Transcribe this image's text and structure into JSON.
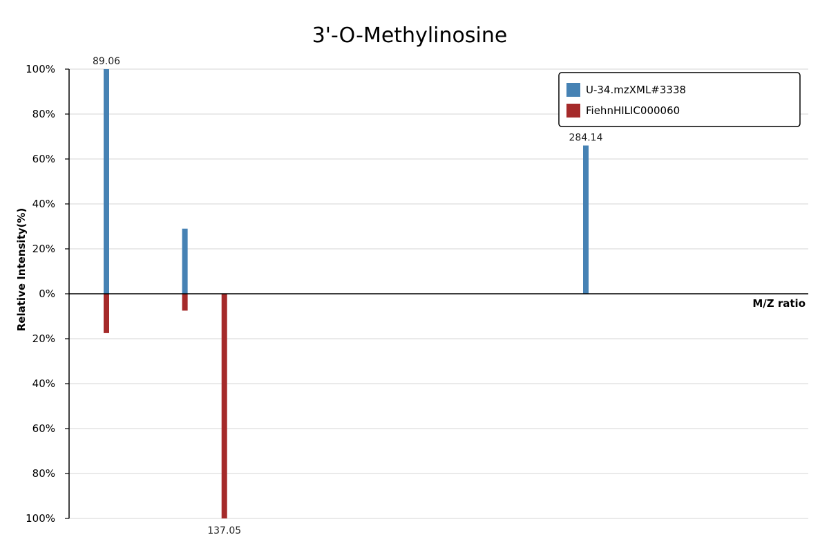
{
  "chart_data": {
    "type": "bar",
    "title": "3'-O-Methylinosine",
    "xlabel": "M/Z ratio",
    "ylabel": "Relative Intensity(%)",
    "xlim": [
      85,
      300
    ],
    "ylim_top": [
      0,
      100
    ],
    "ylim_bottom": [
      0,
      100
    ],
    "y_tick_labels": [
      "100%",
      "80%",
      "60%",
      "40%",
      "20%",
      "0%",
      "20%",
      "40%",
      "60%",
      "80%",
      "100%"
    ],
    "grid": true,
    "legend_position": "top-right",
    "series": [
      {
        "name": "U-34.mzXML#3338",
        "color": "#4682b4",
        "direction": "up",
        "peaks": [
          {
            "mz": 89.06,
            "intensity": 100,
            "label": "89.06"
          },
          {
            "mz": 121.0,
            "intensity": 29
          },
          {
            "mz": 284.14,
            "intensity": 66,
            "label": "284.14"
          }
        ]
      },
      {
        "name": "FiehnHILIC000060",
        "color": "#a52a2a",
        "direction": "down",
        "peaks": [
          {
            "mz": 89.06,
            "intensity": 17.5
          },
          {
            "mz": 121.0,
            "intensity": 7.5
          },
          {
            "mz": 137.05,
            "intensity": 100,
            "label": "137.05"
          }
        ]
      }
    ]
  }
}
